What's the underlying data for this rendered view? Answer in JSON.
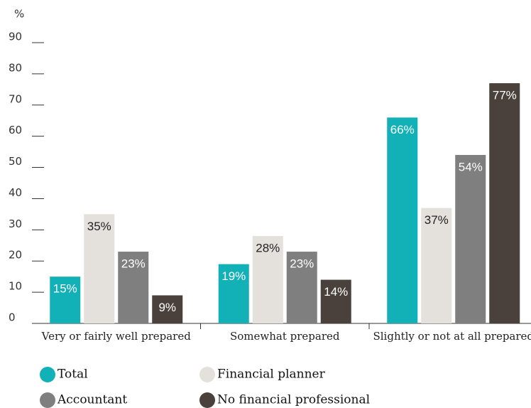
{
  "chart_data": {
    "type": "bar",
    "ylabel": "%",
    "categories": [
      "Very or fairly well prepared",
      "Somewhat prepared",
      "Slightly or not at all prepared"
    ],
    "series": [
      {
        "name": "Total",
        "color": "#12b1b8",
        "label_color": "#ffffff",
        "values": [
          15,
          19,
          66
        ],
        "value_labels": [
          "15%",
          "19%",
          "66%"
        ]
      },
      {
        "name": "Financial planner",
        "color": "#e4e0db",
        "label_color": "#222222",
        "values": [
          35,
          28,
          37
        ],
        "value_labels": [
          "35%",
          "28%",
          "37%"
        ]
      },
      {
        "name": "Accountant",
        "color": "#7f7f7f",
        "label_color": "#ffffff",
        "values": [
          23,
          23,
          54
        ],
        "value_labels": [
          "23%",
          "23%",
          "54%"
        ]
      },
      {
        "name": "No financial professional",
        "color": "#4a413c",
        "label_color": "#ffffff",
        "values": [
          9,
          14,
          77
        ],
        "value_labels": [
          "9%",
          "14%",
          "77%"
        ]
      }
    ],
    "ylim": [
      0,
      90
    ],
    "yticks": [
      0,
      10,
      20,
      30,
      40,
      50,
      60,
      70,
      80,
      90
    ]
  }
}
